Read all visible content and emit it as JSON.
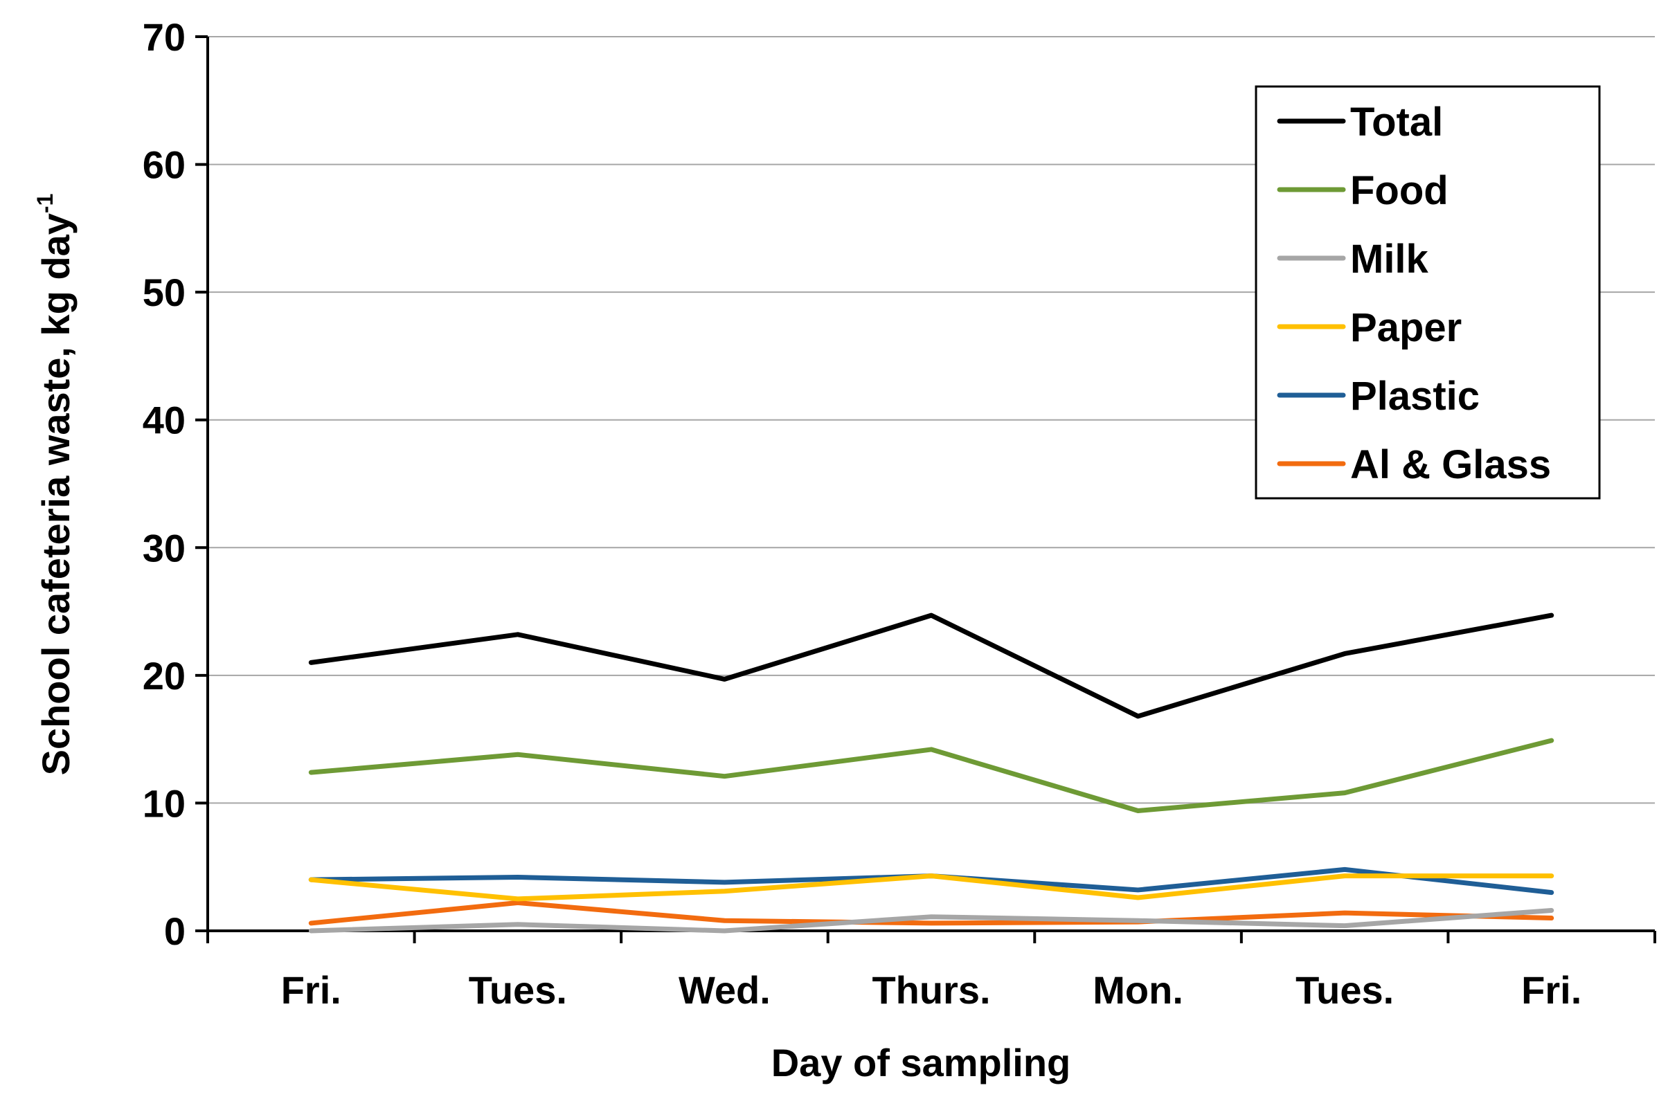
{
  "chart_data": {
    "type": "line",
    "title": "",
    "xlabel": "Day of sampling",
    "ylabel": "School cafeteria waste, kg day",
    "ylabel_superscript": "-1",
    "categories": [
      "Fri.",
      "Tues.",
      "Wed.",
      "Thurs.",
      "Mon.",
      "Tues.",
      "Fri."
    ],
    "ylim": [
      0,
      70
    ],
    "yticks": [
      0,
      10,
      20,
      30,
      40,
      50,
      60,
      70
    ],
    "grid": true,
    "legend_position": "top-right",
    "series": [
      {
        "name": "Total",
        "color": "#000000",
        "values": [
          21.0,
          23.2,
          19.7,
          24.7,
          16.8,
          21.7,
          24.7
        ]
      },
      {
        "name": "Food",
        "color": "#6e9a35",
        "values": [
          12.4,
          13.8,
          12.1,
          14.2,
          9.4,
          10.8,
          14.9
        ]
      },
      {
        "name": "Milk",
        "color": "#a6a6a6",
        "values": [
          0.0,
          0.5,
          0.0,
          1.1,
          0.8,
          0.4,
          1.6
        ]
      },
      {
        "name": "Paper",
        "color": "#ffc000",
        "values": [
          4.0,
          2.5,
          3.1,
          4.3,
          2.6,
          4.3,
          4.3
        ]
      },
      {
        "name": "Plastic",
        "color": "#1f5e96",
        "values": [
          4.0,
          4.2,
          3.8,
          4.3,
          3.2,
          4.8,
          3.0
        ]
      },
      {
        "name": "Al & Glass",
        "color": "#f26b0f",
        "values": [
          0.6,
          2.2,
          0.8,
          0.6,
          0.7,
          1.4,
          1.0
        ]
      }
    ]
  }
}
